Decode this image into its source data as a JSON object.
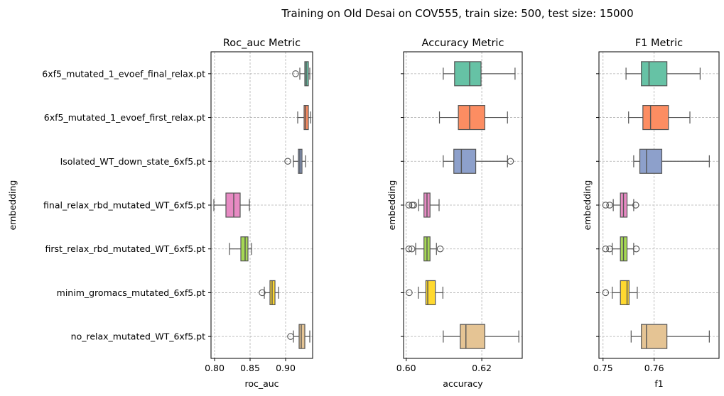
{
  "suptitle": "Training on Old Desai on COV555, train size: 500, test size: 15000",
  "categories": [
    "6xf5_mutated_1_evoef_final_relax.pt",
    "6xf5_mutated_1_evoef_first_relax.pt",
    "Isolated_WT_down_state_6xf5.pt",
    "final_relax_rbd_mutated_WT_6xf5.pt",
    "first_relax_rbd_mutated_WT_6xf5.pt",
    "minim_gromacs_mutated_6xf5.pt",
    "no_relax_mutated_WT_6xf5.pt"
  ],
  "colors": [
    "#66c2a5",
    "#fc8d62",
    "#8da0cb",
    "#e78ac3",
    "#a6d854",
    "#ffd92f",
    "#e5c494"
  ],
  "chart_data": [
    {
      "type": "box",
      "title": "Roc_auc Metric",
      "xlabel": "roc_auc",
      "ylabel": "embedding",
      "xlim": [
        0.795,
        0.938
      ],
      "xticks": [
        0.8,
        0.85,
        0.9
      ],
      "xtick_labels": [
        "0.80",
        "0.85",
        "0.90"
      ],
      "grid": true,
      "boxes": [
        {
          "whislo": 0.92,
          "q1": 0.927,
          "med": 0.929,
          "q3": 0.932,
          "whishi": 0.934,
          "fliers": [
            0.914
          ]
        },
        {
          "whislo": 0.917,
          "q1": 0.926,
          "med": 0.928,
          "q3": 0.932,
          "whishi": 0.935,
          "fliers": []
        },
        {
          "whislo": 0.911,
          "q1": 0.918,
          "med": 0.92,
          "q3": 0.923,
          "whishi": 0.928,
          "fliers": [
            0.903
          ]
        },
        {
          "whislo": 0.799,
          "q1": 0.816,
          "med": 0.827,
          "q3": 0.836,
          "whishi": 0.849,
          "fliers": []
        },
        {
          "whislo": 0.821,
          "q1": 0.837,
          "med": 0.843,
          "q3": 0.847,
          "whishi": 0.852,
          "fliers": []
        },
        {
          "whislo": 0.87,
          "q1": 0.878,
          "med": 0.881,
          "q3": 0.885,
          "whishi": 0.89,
          "fliers": [
            0.867
          ]
        },
        {
          "whislo": 0.911,
          "q1": 0.919,
          "med": 0.922,
          "q3": 0.927,
          "whishi": 0.934,
          "fliers": [
            0.907
          ]
        }
      ]
    },
    {
      "type": "box",
      "title": "Accuracy Metric",
      "xlabel": "accuracy",
      "ylabel": "embedding",
      "xlim": [
        0.5993,
        0.6307
      ],
      "xticks": [
        0.6,
        0.62
      ],
      "xtick_labels": [
        "0.60",
        "0.62"
      ],
      "grid": true,
      "boxes": [
        {
          "whislo": 0.6098,
          "q1": 0.6128,
          "med": 0.6168,
          "q3": 0.6198,
          "whishi": 0.6288,
          "fliers": []
        },
        {
          "whislo": 0.6088,
          "q1": 0.6138,
          "med": 0.6168,
          "q3": 0.6208,
          "whishi": 0.6268,
          "fliers": []
        },
        {
          "whislo": 0.6098,
          "q1": 0.6126,
          "med": 0.6146,
          "q3": 0.6184,
          "whishi": 0.6268,
          "fliers": [
            0.6276
          ]
        },
        {
          "whislo": 0.6033,
          "q1": 0.6047,
          "med": 0.6055,
          "q3": 0.6063,
          "whishi": 0.6087,
          "fliers": [
            0.6007,
            0.6016,
            0.602
          ]
        },
        {
          "whislo": 0.6025,
          "q1": 0.6047,
          "med": 0.6055,
          "q3": 0.6063,
          "whishi": 0.608,
          "fliers": [
            0.6007,
            0.6015,
            0.609
          ]
        },
        {
          "whislo": 0.6032,
          "q1": 0.6052,
          "med": 0.6057,
          "q3": 0.6077,
          "whishi": 0.6097,
          "fliers": [
            0.6008
          ]
        },
        {
          "whislo": 0.6098,
          "q1": 0.6143,
          "med": 0.6158,
          "q3": 0.6208,
          "whishi": 0.6298,
          "fliers": []
        }
      ]
    },
    {
      "type": "box",
      "title": "F1 Metric",
      "xlabel": "f1",
      "ylabel": "embedding",
      "xlim": [
        0.7492,
        0.7727
      ],
      "xticks": [
        0.75,
        0.76
      ],
      "xtick_labels": [
        "0.75",
        "0.76"
      ],
      "grid": true,
      "boxes": [
        {
          "whislo": 0.7545,
          "q1": 0.7575,
          "med": 0.759,
          "q3": 0.7625,
          "whishi": 0.769,
          "fliers": []
        },
        {
          "whislo": 0.755,
          "q1": 0.7578,
          "med": 0.7593,
          "q3": 0.7628,
          "whishi": 0.767,
          "fliers": []
        },
        {
          "whislo": 0.756,
          "q1": 0.7572,
          "med": 0.7585,
          "q3": 0.7615,
          "whishi": 0.7708,
          "fliers": []
        },
        {
          "whislo": 0.752,
          "q1": 0.7534,
          "med": 0.754,
          "q3": 0.7547,
          "whishi": 0.756,
          "fliers": [
            0.7505,
            0.7513,
            0.7564
          ]
        },
        {
          "whislo": 0.7518,
          "q1": 0.7534,
          "med": 0.754,
          "q3": 0.7547,
          "whishi": 0.756,
          "fliers": [
            0.7505,
            0.7513,
            0.7565
          ]
        },
        {
          "whislo": 0.7518,
          "q1": 0.7534,
          "med": 0.7547,
          "q3": 0.7551,
          "whishi": 0.7567,
          "fliers": [
            0.7505
          ]
        },
        {
          "whislo": 0.7555,
          "q1": 0.7575,
          "med": 0.7585,
          "q3": 0.7625,
          "whishi": 0.7708,
          "fliers": []
        }
      ]
    }
  ]
}
